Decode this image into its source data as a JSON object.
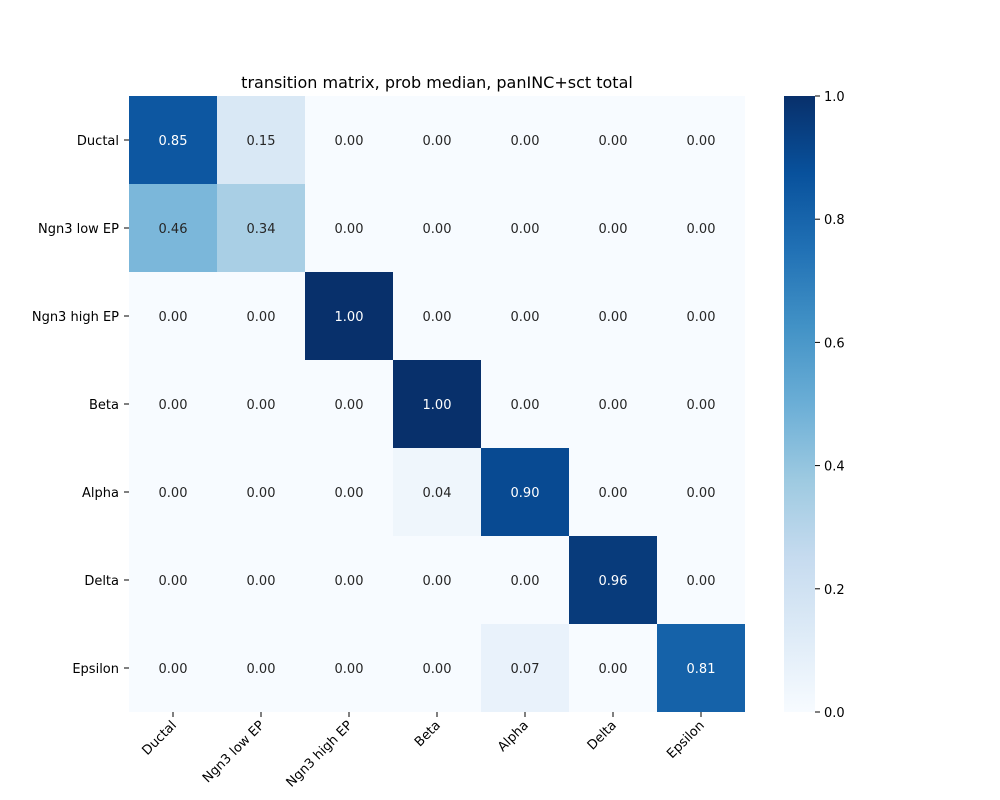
{
  "chart_data": {
    "type": "heatmap",
    "title": "transition matrix, prob median, panINC+sct total",
    "rows": [
      "Ductal",
      "Ngn3 low EP",
      "Ngn3 high EP",
      "Beta",
      "Alpha",
      "Delta",
      "Epsilon"
    ],
    "columns": [
      "Ductal",
      "Ngn3 low EP",
      "Ngn3 high EP",
      "Beta",
      "Alpha",
      "Delta",
      "Epsilon"
    ],
    "values": [
      [
        0.85,
        0.15,
        0.0,
        0.0,
        0.0,
        0.0,
        0.0
      ],
      [
        0.46,
        0.34,
        0.0,
        0.0,
        0.0,
        0.0,
        0.0
      ],
      [
        0.0,
        0.0,
        1.0,
        0.0,
        0.0,
        0.0,
        0.0
      ],
      [
        0.0,
        0.0,
        0.0,
        1.0,
        0.0,
        0.0,
        0.0
      ],
      [
        0.0,
        0.0,
        0.0,
        0.04,
        0.9,
        0.0,
        0.0
      ],
      [
        0.0,
        0.0,
        0.0,
        0.0,
        0.0,
        0.96,
        0.0
      ],
      [
        0.0,
        0.0,
        0.0,
        0.0,
        0.07,
        0.0,
        0.81
      ]
    ],
    "colorbar": {
      "min": 0.0,
      "max": 1.0,
      "ticks": [
        0.0,
        0.2,
        0.4,
        0.6,
        0.8,
        1.0
      ],
      "tick_labels": [
        "0.0",
        "0.2",
        "0.4",
        "0.6",
        "0.8",
        "1.0"
      ]
    },
    "colormap": "Blues",
    "colormap_stops": [
      "#f7fbff",
      "#deebf7",
      "#c6dbef",
      "#9ecae1",
      "#6baed6",
      "#4292c6",
      "#2171b5",
      "#08519c",
      "#08306b"
    ],
    "xlabel": "",
    "ylabel": ""
  }
}
